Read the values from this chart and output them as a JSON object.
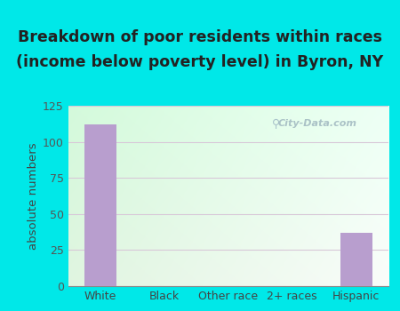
{
  "title_line1": "Breakdown of poor residents within races",
  "title_line2": "(income below poverty level) in Byron, NY",
  "categories": [
    "White",
    "Black",
    "Other race",
    "2+ races",
    "Hispanic"
  ],
  "values": [
    112,
    0,
    0,
    0,
    37
  ],
  "bar_color": "#b89ece",
  "ylabel": "absolute numbers",
  "ylim": [
    0,
    125
  ],
  "yticks": [
    0,
    25,
    50,
    75,
    100,
    125
  ],
  "outer_bg": "#00e8e8",
  "grid_color": "#d8c8d8",
  "watermark_text": "City-Data.com",
  "title_fontsize": 12.5,
  "ylabel_fontsize": 9.5,
  "tick_fontsize": 9,
  "title_color": "#222222"
}
